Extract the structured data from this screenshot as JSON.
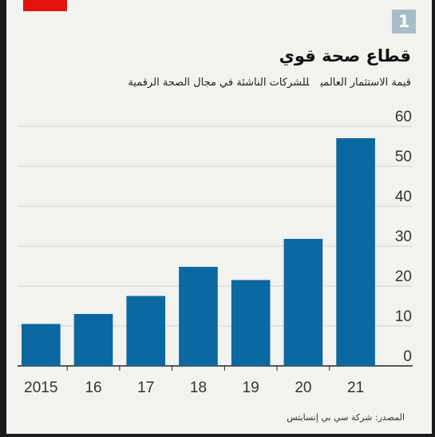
{
  "header": {
    "badge_number": "1",
    "title": "قطاع صحة قوي",
    "subtitle_part1": "قيمة الاستثمار العالمي",
    "subtitle_part2": "للشركات الناشئة في مجال الصحة الرقمية"
  },
  "footer": {
    "source": "المصدر: شركة سي بي إنسايتس"
  },
  "colors": {
    "bar": "#0b68a1",
    "accent_red": "#e3120b",
    "badge": "#a7bcc8",
    "grid": "#cfd4d6",
    "background": "#f2f2ef"
  },
  "chart_data": {
    "type": "bar",
    "categories": [
      "2015",
      "16",
      "17",
      "18",
      "19",
      "20",
      "21"
    ],
    "values": [
      10.5,
      13,
      17.5,
      24.8,
      21.5,
      31.8,
      57
    ],
    "ylim": [
      0,
      60
    ],
    "yticks": [
      "0",
      "10",
      "20",
      "30",
      "40",
      "50",
      "60"
    ],
    "y_axis_side": "right",
    "grid": true,
    "xlabel": "",
    "ylabel": ""
  }
}
